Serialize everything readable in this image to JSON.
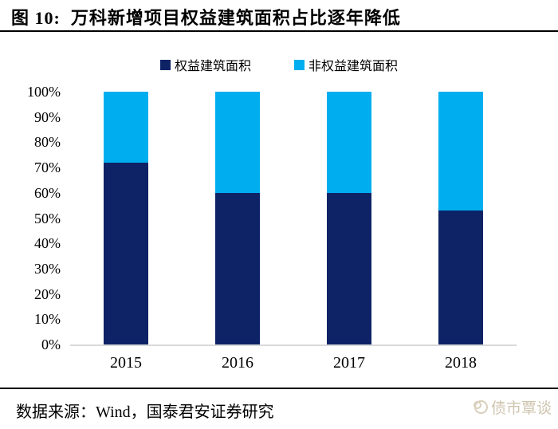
{
  "header": {
    "title": "图 10:  万科新增项目权益建筑面积占比逐年降低"
  },
  "chart_data": {
    "type": "bar",
    "stacked": true,
    "normalized": true,
    "title": "万科新增项目权益建筑面积占比逐年降低",
    "categories": [
      "2015",
      "2016",
      "2017",
      "2018"
    ],
    "series": [
      {
        "name": "权益建筑面积",
        "color": "#0d2366",
        "values": [
          72,
          60,
          60,
          53
        ]
      },
      {
        "name": "非权益建筑面积",
        "color": "#00aeef",
        "values": [
          28,
          40,
          40,
          47
        ]
      }
    ],
    "xlabel": "",
    "ylabel": "",
    "ylim": [
      0,
      100
    ],
    "y_ticks": [
      "0%",
      "10%",
      "20%",
      "30%",
      "40%",
      "50%",
      "60%",
      "70%",
      "80%",
      "90%",
      "100%"
    ],
    "grid": false,
    "legend_position": "top",
    "baseline_color": "#d9d9d9"
  },
  "footer": {
    "source": "数据来源：Wind，国泰君安证券研究",
    "watermark": "债市覃谈"
  }
}
